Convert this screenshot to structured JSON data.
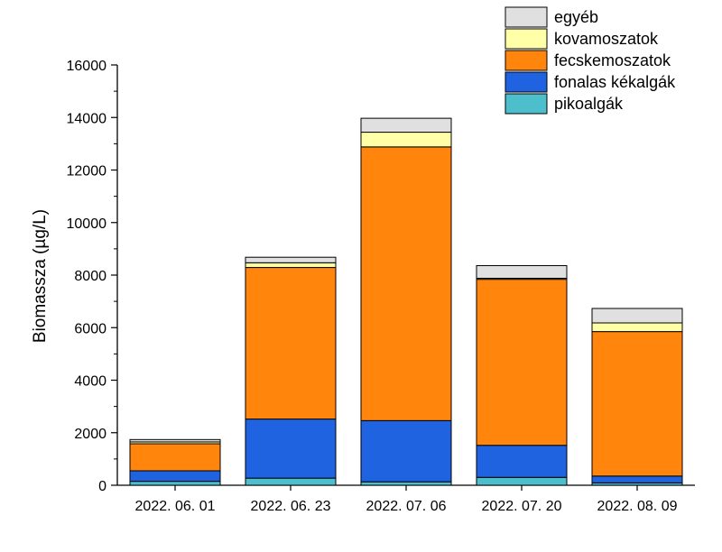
{
  "chart_data": {
    "type": "bar",
    "stacked": true,
    "title": "",
    "xlabel": "",
    "ylabel": "Biomassza (µg/L)",
    "ylim": [
      0,
      16000
    ],
    "yticks": [
      0,
      2000,
      4000,
      6000,
      8000,
      10000,
      12000,
      14000,
      16000
    ],
    "categories": [
      "2022. 06. 01",
      "2022. 06. 23",
      "2022. 07. 06",
      "2022. 07. 20",
      "2022. 08. 09"
    ],
    "legend_position": "top-right",
    "series": [
      {
        "name": "pikoalgák",
        "color": "#4dbfcc",
        "values": [
          150,
          270,
          130,
          300,
          90
        ]
      },
      {
        "name": "fonalas kékalgák",
        "color": "#1f63e0",
        "values": [
          400,
          2250,
          2330,
          1220,
          260
        ]
      },
      {
        "name": "fecskemoszatok",
        "color": "#ff850d",
        "values": [
          1030,
          5770,
          10420,
          6320,
          5500
        ]
      },
      {
        "name": "kovamoszatok",
        "color": "#ffffa8",
        "values": [
          70,
          180,
          560,
          40,
          330
        ]
      },
      {
        "name": "egyéb",
        "color": "#e0e0e0",
        "values": [
          90,
          210,
          530,
          480,
          550
        ]
      }
    ]
  }
}
